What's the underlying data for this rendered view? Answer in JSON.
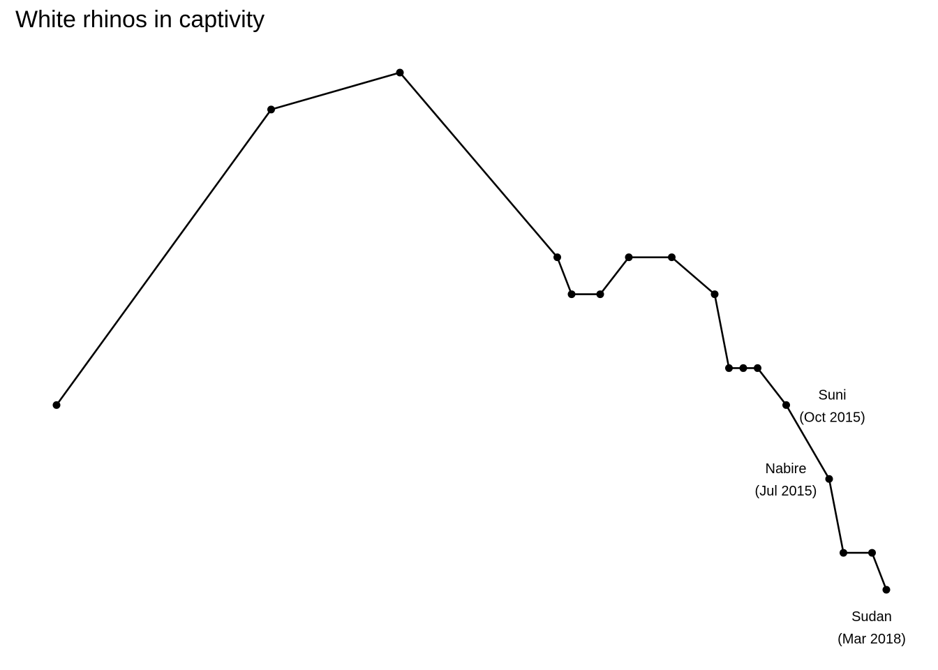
{
  "chart_data": {
    "type": "line",
    "title": "White rhinos in captivity",
    "xlabel": "",
    "ylabel": "",
    "grid": false,
    "x_axis_visible": false,
    "y_axis_visible": false,
    "series": [
      {
        "color": "#000000",
        "points": [
          {
            "x": 1975.0,
            "y": 10
          },
          {
            "x": 1990.0,
            "y": 18
          },
          {
            "x": 1999.0,
            "y": 19
          },
          {
            "x": 2010.0,
            "y": 14
          },
          {
            "x": 2011.0,
            "y": 13
          },
          {
            "x": 2013.0,
            "y": 13
          },
          {
            "x": 2015.0,
            "y": 14
          },
          {
            "x": 2018.0,
            "y": 14
          },
          {
            "x": 2021.0,
            "y": 13
          },
          {
            "x": 2022.0,
            "y": 11
          },
          {
            "x": 2023.0,
            "y": 11
          },
          {
            "x": 2024.0,
            "y": 11
          },
          {
            "x": 2026.0,
            "y": 10
          },
          {
            "x": 2029.0,
            "y": 8
          },
          {
            "x": 2030.0,
            "y": 6
          },
          {
            "x": 2032.0,
            "y": 6
          },
          {
            "x": 2033.0,
            "y": 5
          }
        ]
      }
    ],
    "xlim": [
      1972.0,
      2036.0
    ],
    "ylim": [
      4,
      20.5
    ],
    "annotations": [
      {
        "point_index": 12,
        "name": "Suni",
        "date": "(Oct 2015)",
        "position": "right-below"
      },
      {
        "point_index": 13,
        "name": "Nabire",
        "date": "(Jul 2015)",
        "position": "left-below"
      },
      {
        "point_index": 16,
        "name": "Sudan",
        "date": "(Mar 2018)",
        "position": "below"
      }
    ]
  }
}
